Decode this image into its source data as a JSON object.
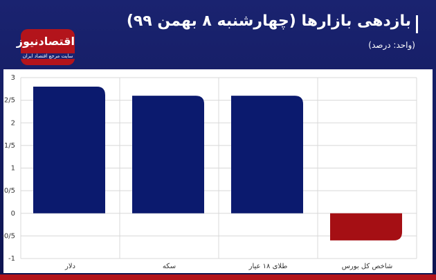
{
  "chart_data": {
    "type": "bar",
    "title": "بازدهی بازارها (چهارشنبه ۸ بهمن ۹۹)",
    "subtitle": "(واحد: درصد)",
    "logo": "اقتصادنیوز",
    "logo_caption": "سایت مرجع اقتصاد ایران",
    "categories": [
      "دلار",
      "سکه",
      "طلای ۱۸ عیار",
      "شاخص کل بورس"
    ],
    "values": [
      2.8,
      2.6,
      2.6,
      -0.6
    ],
    "color": "#0b1a6e",
    "negative_color": "#a50f14",
    "ylim": [
      -1,
      3
    ],
    "yticks": [
      -1,
      {
        "value": -0.5,
        "label": "-0/5"
      },
      0,
      {
        "value": 0.5,
        "label": "0/5"
      },
      1,
      {
        "value": 1.5,
        "label": "1/5"
      },
      2,
      {
        "value": 2.5,
        "label": "2/5"
      },
      3
    ],
    "grid": true
  }
}
